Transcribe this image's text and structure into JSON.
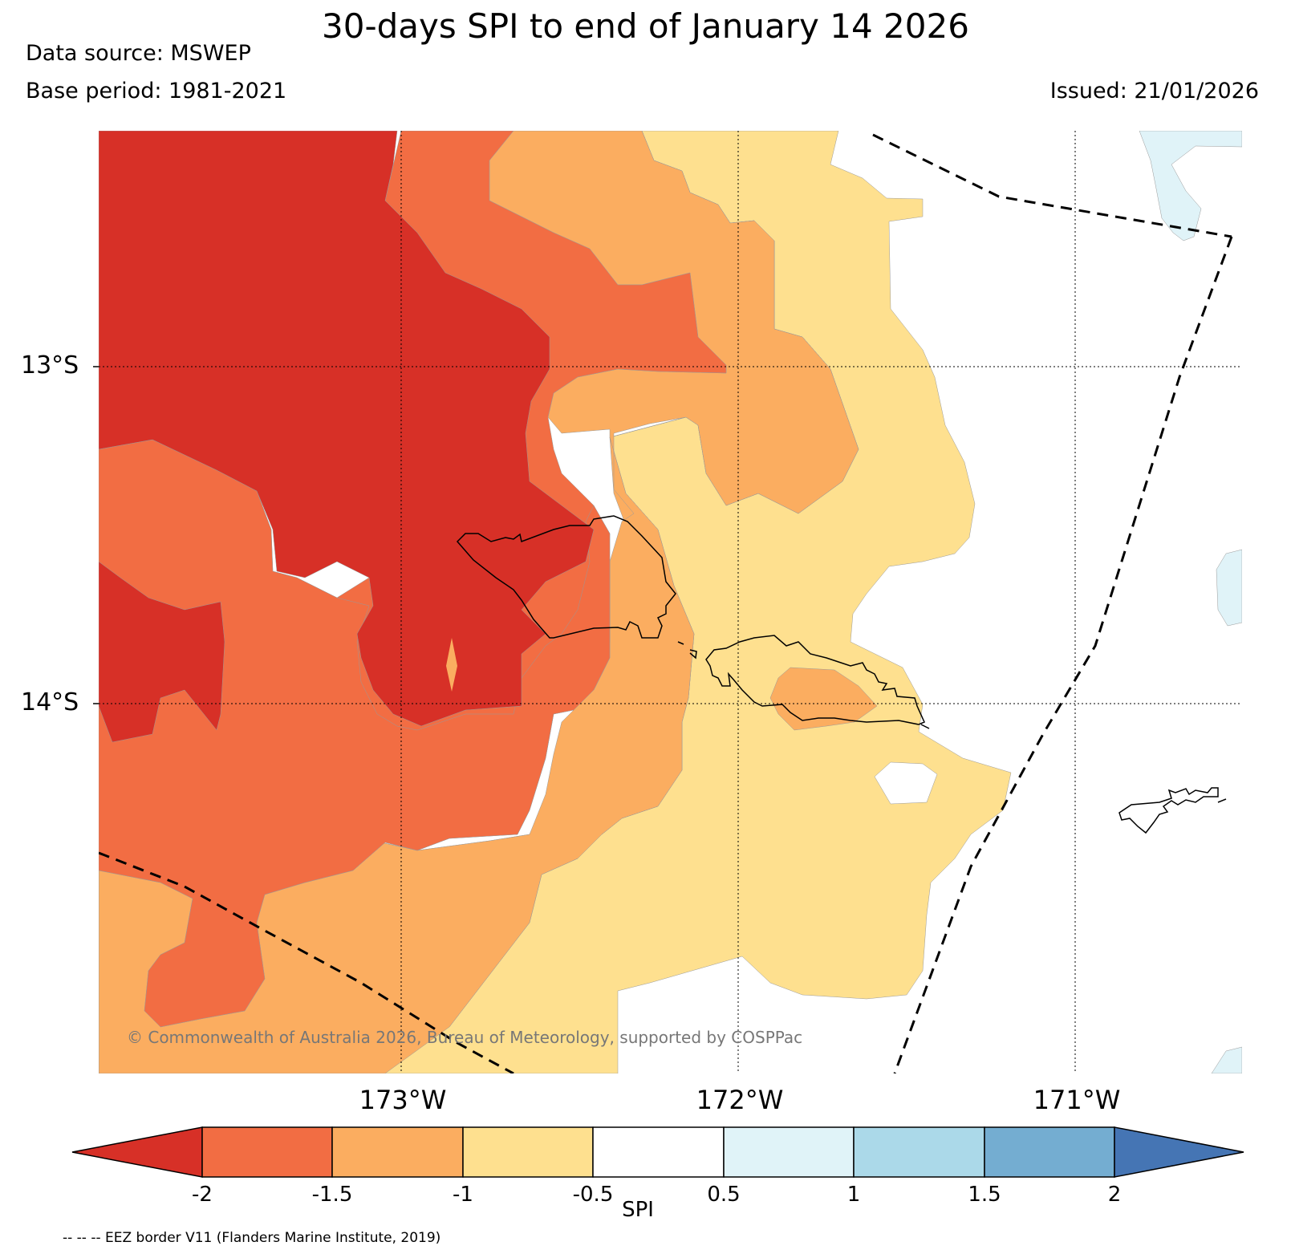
{
  "header": {
    "title": "30-days SPI to end of January 14 2026",
    "data_source": "Data source: MSWEP",
    "base_period": "Base period: 1981-2021",
    "issued": "Issued: 21/01/2026"
  },
  "map": {
    "latitude_labels": [
      "13°S",
      "14°S"
    ],
    "longitude_labels": [
      "173°W",
      "172°W",
      "171°W"
    ],
    "copyright": "© Commonwealth of Australia 2026, Bureau of Meteorology, supported by COSPPac",
    "colors": {
      "lt_-2": "#d73027",
      "-2_-1.5": "#f26d43",
      "-1.5_-1": "#fbad60",
      "-1_-0.5": "#fee08f",
      "-0.5_0.5": "#ffffff",
      "0.5_1": "#e0f3f8",
      "1_1.5": "#abd9e9",
      "1.5_2": "#74add1",
      "gt_2": "#4575b4"
    }
  },
  "colorbar": {
    "label": "SPI",
    "ticks": [
      "-2",
      "-1.5",
      "-1",
      "-0.5",
      "0.5",
      "1",
      "1.5",
      "2"
    ]
  },
  "footnote": "-- -- -- EEZ border V11 (Flanders Marine Institute, 2019)"
}
